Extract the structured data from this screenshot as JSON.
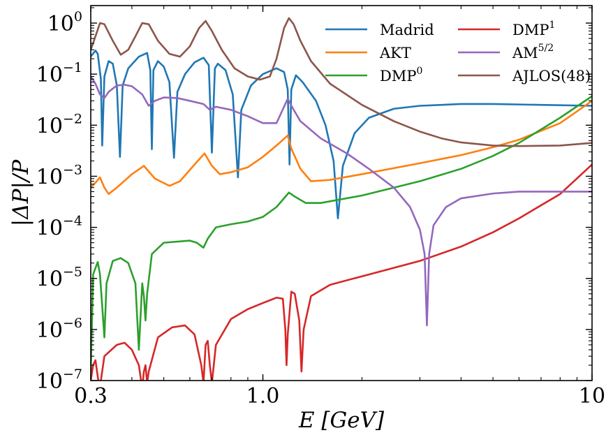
{
  "chart_data": {
    "type": "line",
    "title": "",
    "xlabel": "E [GeV]",
    "ylabel": "|ΔP|/P",
    "xscale": "log",
    "yscale": "log",
    "xlim": [
      0.3,
      10
    ],
    "ylim": [
      1e-07,
      2.2
    ],
    "grid": false,
    "legend_position": "top-right",
    "x_ticks": [
      {
        "value": 0.3,
        "label": "0.3"
      },
      {
        "value": 1.0,
        "label": "1.0"
      },
      {
        "value": 10,
        "label": "10"
      }
    ],
    "y_ticks": [
      {
        "value": 1.0,
        "base": "10",
        "exp": "0"
      },
      {
        "value": 0.1,
        "base": "10",
        "exp": "−1"
      },
      {
        "value": 0.01,
        "base": "10",
        "exp": "−2"
      },
      {
        "value": 0.001,
        "base": "10",
        "exp": "−3"
      },
      {
        "value": 0.0001,
        "base": "10",
        "exp": "−4"
      },
      {
        "value": 1e-05,
        "base": "10",
        "exp": "−5"
      },
      {
        "value": 1e-06,
        "base": "10",
        "exp": "−6"
      },
      {
        "value": 1e-07,
        "base": "10",
        "exp": "−7"
      }
    ],
    "series": [
      {
        "name": "Madrid",
        "name_base": "Madrid",
        "name_sup": "",
        "color": "#1f77b4",
        "points": [
          [
            0.3,
            0.22
          ],
          [
            0.31,
            0.29
          ],
          [
            0.315,
            0.25
          ],
          [
            0.322,
            0.08
          ],
          [
            0.325,
            0.004
          ],
          [
            0.33,
            0.09
          ],
          [
            0.34,
            0.18
          ],
          [
            0.35,
            0.16
          ],
          [
            0.36,
            0.06
          ],
          [
            0.368,
            0.0024
          ],
          [
            0.375,
            0.06
          ],
          [
            0.39,
            0.13
          ],
          [
            0.42,
            0.22
          ],
          [
            0.445,
            0.26
          ],
          [
            0.455,
            0.12
          ],
          [
            0.46,
            0.0034
          ],
          [
            0.465,
            0.12
          ],
          [
            0.48,
            0.18
          ],
          [
            0.5,
            0.14
          ],
          [
            0.52,
            0.07
          ],
          [
            0.537,
            0.0023
          ],
          [
            0.55,
            0.045
          ],
          [
            0.58,
            0.1
          ],
          [
            0.62,
            0.17
          ],
          [
            0.66,
            0.21
          ],
          [
            0.685,
            0.15
          ],
          [
            0.7,
            0.0029
          ],
          [
            0.715,
            0.13
          ],
          [
            0.73,
            0.16
          ],
          [
            0.77,
            0.12
          ],
          [
            0.81,
            0.04
          ],
          [
            0.84,
            0.00095
          ],
          [
            0.86,
            0.02
          ],
          [
            0.92,
            0.06
          ],
          [
            1.0,
            0.1
          ],
          [
            1.1,
            0.13
          ],
          [
            1.16,
            0.11
          ],
          [
            1.19,
            0.05
          ],
          [
            1.205,
            0.0017
          ],
          [
            1.22,
            0.05
          ],
          [
            1.26,
            0.095
          ],
          [
            1.32,
            0.07
          ],
          [
            1.45,
            0.03
          ],
          [
            1.55,
            0.01
          ],
          [
            1.64,
            0.002
          ],
          [
            1.69,
            0.00015
          ],
          [
            1.75,
            0.0016
          ],
          [
            1.9,
            0.007
          ],
          [
            2.1,
            0.014
          ],
          [
            2.5,
            0.021
          ],
          [
            3.0,
            0.024
          ],
          [
            4.0,
            0.026
          ],
          [
            5.0,
            0.026
          ],
          [
            7.0,
            0.025
          ],
          [
            10.0,
            0.024
          ]
        ]
      },
      {
        "name": "AKT",
        "name_base": "AKT",
        "name_sup": "",
        "color": "#ff7f0e",
        "points": [
          [
            0.3,
            0.0006
          ],
          [
            0.31,
            0.00075
          ],
          [
            0.32,
            0.00095
          ],
          [
            0.33,
            0.0006
          ],
          [
            0.34,
            0.00045
          ],
          [
            0.36,
            0.0006
          ],
          [
            0.4,
            0.0011
          ],
          [
            0.435,
            0.0016
          ],
          [
            0.47,
            0.0009
          ],
          [
            0.52,
            0.00065
          ],
          [
            0.56,
            0.0008
          ],
          [
            0.62,
            0.0017
          ],
          [
            0.665,
            0.0028
          ],
          [
            0.7,
            0.0016
          ],
          [
            0.74,
            0.0011
          ],
          [
            0.8,
            0.0012
          ],
          [
            0.9,
            0.0015
          ],
          [
            1.0,
            0.0024
          ],
          [
            1.1,
            0.004
          ],
          [
            1.19,
            0.0063
          ],
          [
            1.22,
            0.0035
          ],
          [
            1.3,
            0.0014
          ],
          [
            1.4,
            0.0008
          ],
          [
            1.6,
            0.00085
          ],
          [
            2.0,
            0.0011
          ],
          [
            3.0,
            0.0018
          ],
          [
            4.0,
            0.0026
          ],
          [
            5.0,
            0.0037
          ],
          [
            6.0,
            0.0052
          ],
          [
            8.0,
            0.011
          ],
          [
            10.0,
            0.03
          ]
        ]
      },
      {
        "name": "DMP0",
        "name_base": "DMP",
        "name_sup": "0",
        "color": "#2ca02c",
        "points": [
          [
            0.3,
            1e-06
          ],
          [
            0.3,
            1.4e-07
          ],
          [
            0.305,
            1.2e-05
          ],
          [
            0.315,
            2.1e-05
          ],
          [
            0.32,
            1.2e-05
          ],
          [
            0.33,
            7e-07
          ],
          [
            0.335,
            8e-06
          ],
          [
            0.35,
            2.2e-05
          ],
          [
            0.37,
            2.5e-05
          ],
          [
            0.39,
            2e-05
          ],
          [
            0.41,
            8e-06
          ],
          [
            0.42,
            4e-07
          ],
          [
            0.43,
            8e-06
          ],
          [
            0.435,
            4.5e-06
          ],
          [
            0.44,
            1.5e-06
          ],
          [
            0.445,
            5e-06
          ],
          [
            0.46,
            3e-05
          ],
          [
            0.5,
            5e-05
          ],
          [
            0.6,
            5.5e-05
          ],
          [
            0.63,
            5e-05
          ],
          [
            0.66,
            4e-05
          ],
          [
            0.68,
            6e-05
          ],
          [
            0.72,
            0.0001
          ],
          [
            0.8,
            0.000115
          ],
          [
            0.9,
            0.00013
          ],
          [
            1.0,
            0.00016
          ],
          [
            1.1,
            0.00025
          ],
          [
            1.2,
            0.00048
          ],
          [
            1.25,
            0.0004
          ],
          [
            1.35,
            0.0003
          ],
          [
            1.5,
            0.0003
          ],
          [
            2.0,
            0.00042
          ],
          [
            3.0,
            0.0008
          ],
          [
            4.0,
            0.0014
          ],
          [
            5.0,
            0.0025
          ],
          [
            6.0,
            0.0045
          ],
          [
            8.0,
            0.014
          ],
          [
            10.0,
            0.037
          ]
        ]
      },
      {
        "name": "DMP1",
        "name_base": "DMP",
        "name_sup": "1",
        "color": "#d62728",
        "points": [
          [
            0.3,
            1e-07
          ],
          [
            0.305,
            2e-07
          ],
          [
            0.31,
            2.5e-07
          ],
          [
            0.315,
            1.2e-07
          ],
          [
            0.318,
            8e-08
          ],
          [
            0.322,
            1e-07
          ],
          [
            0.33,
            3e-07
          ],
          [
            0.36,
            5e-07
          ],
          [
            0.38,
            5.5e-07
          ],
          [
            0.4,
            4e-07
          ],
          [
            0.42,
            2e-07
          ],
          [
            0.43,
            7e-08
          ],
          [
            0.435,
            1.5e-07
          ],
          [
            0.44,
            2e-07
          ],
          [
            0.445,
            9e-08
          ],
          [
            0.45,
            1.5e-07
          ],
          [
            0.48,
            7e-07
          ],
          [
            0.53,
            1.1e-06
          ],
          [
            0.58,
            1.2e-06
          ],
          [
            0.62,
            8e-07
          ],
          [
            0.65,
            2e-07
          ],
          [
            0.66,
            9e-08
          ],
          [
            0.67,
            5e-07
          ],
          [
            0.68,
            6e-07
          ],
          [
            0.69,
            2e-07
          ],
          [
            0.7,
            9e-08
          ],
          [
            0.72,
            5e-07
          ],
          [
            0.8,
            1.6e-06
          ],
          [
            0.9,
            2.5e-06
          ],
          [
            1.0,
            3.3e-06
          ],
          [
            1.1,
            4.2e-06
          ],
          [
            1.15,
            4e-06
          ],
          [
            1.17,
            1e-06
          ],
          [
            1.18,
            2e-07
          ],
          [
            1.19,
            8e-07
          ],
          [
            1.22,
            5.5e-06
          ],
          [
            1.25,
            5e-06
          ],
          [
            1.29,
            1.5e-06
          ],
          [
            1.31,
            1.5e-07
          ],
          [
            1.33,
            1e-06
          ],
          [
            1.4,
            4.5e-06
          ],
          [
            1.6,
            7.5e-06
          ],
          [
            2.0,
            1.1e-05
          ],
          [
            3.0,
            2.2e-05
          ],
          [
            4.0,
            4.2e-05
          ],
          [
            5.0,
            8e-05
          ],
          [
            6.0,
            0.00015
          ],
          [
            8.0,
            0.00045
          ],
          [
            10.0,
            0.0017
          ]
        ]
      },
      {
        "name": "AM5/2",
        "name_base": "AM",
        "name_sup": "5/2",
        "color": "#9467bd",
        "points": [
          [
            0.3,
            0.09
          ],
          [
            0.31,
            0.065
          ],
          [
            0.32,
            0.04
          ],
          [
            0.33,
            0.034
          ],
          [
            0.34,
            0.045
          ],
          [
            0.36,
            0.06
          ],
          [
            0.38,
            0.062
          ],
          [
            0.4,
            0.058
          ],
          [
            0.43,
            0.04
          ],
          [
            0.45,
            0.024
          ],
          [
            0.47,
            0.03
          ],
          [
            0.5,
            0.035
          ],
          [
            0.55,
            0.034
          ],
          [
            0.6,
            0.03
          ],
          [
            0.66,
            0.026
          ],
          [
            0.69,
            0.02
          ],
          [
            0.72,
            0.023
          ],
          [
            0.8,
            0.02
          ],
          [
            0.9,
            0.015
          ],
          [
            1.0,
            0.011
          ],
          [
            1.1,
            0.011
          ],
          [
            1.19,
            0.033
          ],
          [
            1.23,
            0.022
          ],
          [
            1.3,
            0.012
          ],
          [
            1.5,
            0.0055
          ],
          [
            1.8,
            0.0028
          ],
          [
            2.1,
            0.0014
          ],
          [
            2.5,
            0.0006
          ],
          [
            2.8,
            0.00025
          ],
          [
            3.0,
            9e-05
          ],
          [
            3.1,
            3e-05
          ],
          [
            3.15,
            1.2e-06
          ],
          [
            3.2,
            3e-05
          ],
          [
            3.3,
            0.00011
          ],
          [
            3.6,
            0.00025
          ],
          [
            4.0,
            0.00037
          ],
          [
            5.0,
            0.00046
          ],
          [
            6.0,
            0.0005
          ],
          [
            8.0,
            0.0005
          ],
          [
            10.0,
            0.0005
          ]
        ]
      },
      {
        "name": "AJLOS(48)",
        "name_base": "AJLOS(48)",
        "name_sup": "",
        "color": "#8c564b",
        "points": [
          [
            0.3,
            0.3
          ],
          [
            0.31,
            0.55
          ],
          [
            0.32,
            1.0
          ],
          [
            0.33,
            0.95
          ],
          [
            0.35,
            0.45
          ],
          [
            0.37,
            0.24
          ],
          [
            0.39,
            0.3
          ],
          [
            0.41,
            0.55
          ],
          [
            0.43,
            1.0
          ],
          [
            0.45,
            0.95
          ],
          [
            0.48,
            0.45
          ],
          [
            0.52,
            0.25
          ],
          [
            0.56,
            0.22
          ],
          [
            0.6,
            0.35
          ],
          [
            0.64,
            0.8
          ],
          [
            0.67,
            1.1
          ],
          [
            0.7,
            0.7
          ],
          [
            0.75,
            0.3
          ],
          [
            0.82,
            0.13
          ],
          [
            0.9,
            0.09
          ],
          [
            0.98,
            0.078
          ],
          [
            1.05,
            0.09
          ],
          [
            1.1,
            0.2
          ],
          [
            1.16,
            0.8
          ],
          [
            1.2,
            1.25
          ],
          [
            1.24,
            0.95
          ],
          [
            1.3,
            0.45
          ],
          [
            1.4,
            0.18
          ],
          [
            1.6,
            0.065
          ],
          [
            2.0,
            0.025
          ],
          [
            2.5,
            0.012
          ],
          [
            3.0,
            0.0075
          ],
          [
            3.5,
            0.0055
          ],
          [
            4.0,
            0.0046
          ],
          [
            5.0,
            0.004
          ],
          [
            6.0,
            0.0039
          ],
          [
            8.0,
            0.004
          ],
          [
            10.0,
            0.0045
          ]
        ]
      }
    ]
  }
}
